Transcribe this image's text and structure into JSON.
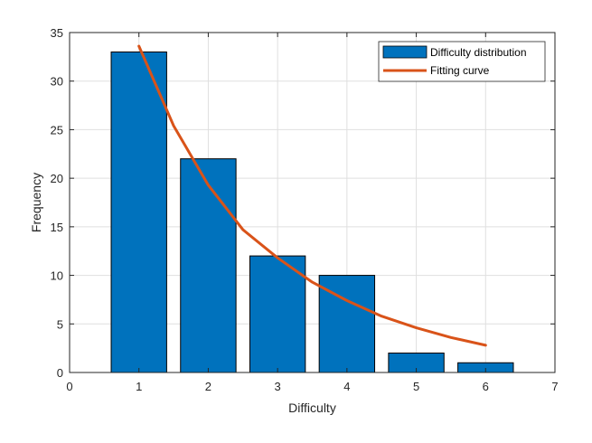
{
  "chart_data": {
    "type": "bar",
    "xlabel": "Difficulty",
    "ylabel": "Frequency",
    "xlim": [
      0,
      7
    ],
    "ylim": [
      0,
      35
    ],
    "xticks": [
      0,
      1,
      2,
      3,
      4,
      5,
      6,
      7
    ],
    "yticks": [
      0,
      5,
      10,
      15,
      20,
      25,
      30,
      35
    ],
    "grid": true,
    "legend_position": "top-right",
    "bars": {
      "name": "Difficulty distribution",
      "color": "#0072BD",
      "edge_color": "#000000",
      "x": [
        1,
        2,
        3,
        4,
        5,
        6
      ],
      "values": [
        33,
        22,
        12,
        10,
        2,
        1
      ]
    },
    "curve": {
      "name": "Fitting curve",
      "type": "line",
      "color": "#D95319",
      "x": [
        1,
        1.5,
        2,
        2.5,
        3,
        3.5,
        4,
        4.5,
        5,
        5.5,
        6
      ],
      "values": [
        33.6,
        25.4,
        19.3,
        14.7,
        11.8,
        9.3,
        7.4,
        5.8,
        4.6,
        3.6,
        2.8
      ]
    }
  }
}
